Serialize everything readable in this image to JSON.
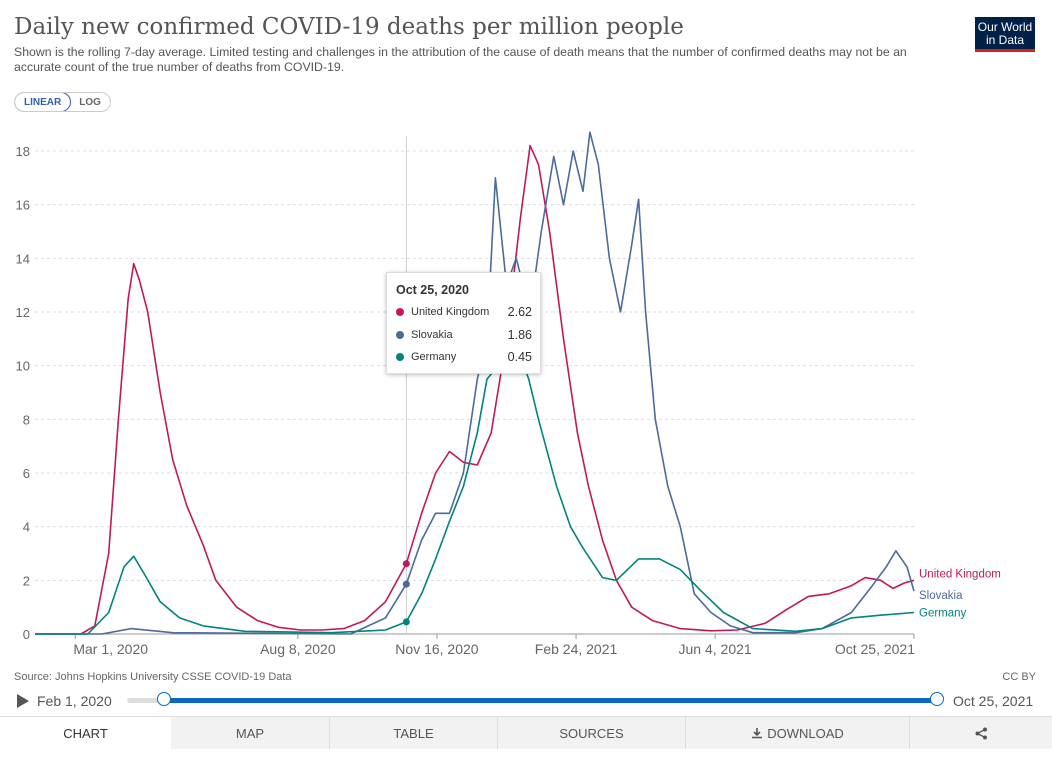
{
  "header": {
    "title": "Daily new confirmed COVID-19 deaths per million people",
    "subtitle": "Shown is the rolling 7-day average. Limited testing and challenges in the attribution of the cause of death means that the number of confirmed deaths may not be an accurate count of the true number of deaths from COVID-19.",
    "logo_line1": "Our World",
    "logo_line2": "in Data"
  },
  "scale_toggle": {
    "linear_label": "LINEAR",
    "log_label": "LOG",
    "selected": "LINEAR"
  },
  "footer": {
    "source": "Source: Johns Hopkins University CSSE COVID-19 Data",
    "license": "CC BY"
  },
  "timeline": {
    "start_label": "Feb 1, 2020",
    "end_label": "Oct 25, 2021"
  },
  "tabs": [
    {
      "label": "CHART",
      "active": true
    },
    {
      "label": "MAP"
    },
    {
      "label": "TABLE"
    },
    {
      "label": "SOURCES"
    },
    {
      "label": "DOWNLOAD",
      "icon": "download-icon"
    },
    {
      "label": "",
      "icon": "share-icon"
    }
  ],
  "tooltip": {
    "date": "Oct 25, 2020",
    "rows": [
      {
        "name": "United Kingdom",
        "value": "2.62",
        "color": "#c2185b"
      },
      {
        "name": "Slovakia",
        "value": "1.86",
        "color": "#4c6a9c"
      },
      {
        "name": "Germany",
        "value": "0.45",
        "color": "#00847e"
      }
    ]
  },
  "chart_data": {
    "type": "line",
    "title": "Daily new confirmed COVID-19 deaths per million people",
    "x_type": "date",
    "xlim": [
      "2020-02-01",
      "2021-10-25"
    ],
    "ylim": [
      0,
      18
    ],
    "x_ticks": [
      {
        "date": "2020-03-01",
        "label": "Mar 1, 2020"
      },
      {
        "date": "2020-08-08",
        "label": "Aug 8, 2020"
      },
      {
        "date": "2020-11-16",
        "label": "Nov 16, 2020"
      },
      {
        "date": "2021-02-24",
        "label": "Feb 24, 2021"
      },
      {
        "date": "2021-06-04",
        "label": "Jun 4, 2021"
      },
      {
        "date": "2021-10-25",
        "label": "Oct 25, 2021"
      }
    ],
    "y_ticks": [
      0,
      2,
      4,
      6,
      8,
      10,
      12,
      14,
      16,
      18
    ],
    "grid": "horizontal",
    "hover_date": "2020-10-25",
    "series": [
      {
        "name": "United Kingdom",
        "color": "#c2185b",
        "points": [
          [
            "2020-02-01",
            0
          ],
          [
            "2020-03-05",
            0
          ],
          [
            "2020-03-15",
            0.3
          ],
          [
            "2020-03-25",
            3
          ],
          [
            "2020-04-01",
            8
          ],
          [
            "2020-04-08",
            12.5
          ],
          [
            "2020-04-12",
            13.8
          ],
          [
            "2020-04-16",
            13.2
          ],
          [
            "2020-04-22",
            12
          ],
          [
            "2020-05-01",
            9
          ],
          [
            "2020-05-10",
            6.5
          ],
          [
            "2020-05-20",
            4.8
          ],
          [
            "2020-06-01",
            3.3
          ],
          [
            "2020-06-10",
            2
          ],
          [
            "2020-06-25",
            1
          ],
          [
            "2020-07-10",
            0.5
          ],
          [
            "2020-07-25",
            0.25
          ],
          [
            "2020-08-10",
            0.15
          ],
          [
            "2020-08-25",
            0.15
          ],
          [
            "2020-09-10",
            0.2
          ],
          [
            "2020-09-25",
            0.5
          ],
          [
            "2020-10-10",
            1.2
          ],
          [
            "2020-10-25",
            2.62
          ],
          [
            "2020-11-05",
            4.5
          ],
          [
            "2020-11-15",
            6
          ],
          [
            "2020-11-25",
            6.8
          ],
          [
            "2020-12-05",
            6.4
          ],
          [
            "2020-12-15",
            6.3
          ],
          [
            "2020-12-25",
            7.5
          ],
          [
            "2021-01-05",
            11
          ],
          [
            "2021-01-15",
            15.5
          ],
          [
            "2021-01-22",
            18.2
          ],
          [
            "2021-01-28",
            17.5
          ],
          [
            "2021-02-05",
            15
          ],
          [
            "2021-02-15",
            11
          ],
          [
            "2021-02-25",
            7.5
          ],
          [
            "2021-03-05",
            5.5
          ],
          [
            "2021-03-15",
            3.5
          ],
          [
            "2021-03-25",
            2
          ],
          [
            "2021-04-05",
            1
          ],
          [
            "2021-04-20",
            0.5
          ],
          [
            "2021-05-10",
            0.2
          ],
          [
            "2021-06-01",
            0.12
          ],
          [
            "2021-06-20",
            0.15
          ],
          [
            "2021-07-10",
            0.4
          ],
          [
            "2021-07-25",
            0.9
          ],
          [
            "2021-08-10",
            1.4
          ],
          [
            "2021-08-25",
            1.5
          ],
          [
            "2021-09-10",
            1.8
          ],
          [
            "2021-09-20",
            2.1
          ],
          [
            "2021-10-01",
            2
          ],
          [
            "2021-10-10",
            1.7
          ],
          [
            "2021-10-18",
            1.9
          ],
          [
            "2021-10-25",
            2
          ]
        ]
      },
      {
        "name": "Slovakia",
        "color": "#4c6a9c",
        "points": [
          [
            "2020-02-01",
            0
          ],
          [
            "2020-03-20",
            0
          ],
          [
            "2020-04-10",
            0.2
          ],
          [
            "2020-05-10",
            0.05
          ],
          [
            "2020-09-15",
            0
          ],
          [
            "2020-10-10",
            0.6
          ],
          [
            "2020-10-25",
            1.86
          ],
          [
            "2020-11-05",
            3.5
          ],
          [
            "2020-11-15",
            4.5
          ],
          [
            "2020-11-25",
            4.5
          ],
          [
            "2020-12-05",
            6
          ],
          [
            "2020-12-15",
            9.5
          ],
          [
            "2020-12-22",
            11
          ],
          [
            "2020-12-28",
            17
          ],
          [
            "2021-01-05",
            13
          ],
          [
            "2021-01-12",
            14
          ],
          [
            "2021-01-22",
            12
          ],
          [
            "2021-01-30",
            15
          ],
          [
            "2021-02-08",
            17.8
          ],
          [
            "2021-02-15",
            16
          ],
          [
            "2021-02-22",
            18
          ],
          [
            "2021-03-01",
            16.5
          ],
          [
            "2021-03-06",
            18.7
          ],
          [
            "2021-03-12",
            17.5
          ],
          [
            "2021-03-20",
            14
          ],
          [
            "2021-03-28",
            12
          ],
          [
            "2021-04-05",
            14.5
          ],
          [
            "2021-04-10",
            16.2
          ],
          [
            "2021-04-15",
            12
          ],
          [
            "2021-04-22",
            8
          ],
          [
            "2021-05-01",
            5.5
          ],
          [
            "2021-05-10",
            4
          ],
          [
            "2021-05-20",
            1.5
          ],
          [
            "2021-06-01",
            0.8
          ],
          [
            "2021-06-15",
            0.3
          ],
          [
            "2021-07-01",
            0.05
          ],
          [
            "2021-08-01",
            0.05
          ],
          [
            "2021-08-20",
            0.2
          ],
          [
            "2021-09-10",
            0.8
          ],
          [
            "2021-09-25",
            1.8
          ],
          [
            "2021-10-05",
            2.5
          ],
          [
            "2021-10-12",
            3.1
          ],
          [
            "2021-10-20",
            2.5
          ],
          [
            "2021-10-25",
            1.6
          ]
        ]
      },
      {
        "name": "Germany",
        "color": "#00847e",
        "points": [
          [
            "2020-02-01",
            0
          ],
          [
            "2020-03-10",
            0
          ],
          [
            "2020-03-25",
            0.8
          ],
          [
            "2020-04-05",
            2.5
          ],
          [
            "2020-04-12",
            2.9
          ],
          [
            "2020-04-20",
            2.2
          ],
          [
            "2020-05-01",
            1.2
          ],
          [
            "2020-05-15",
            0.6
          ],
          [
            "2020-06-01",
            0.3
          ],
          [
            "2020-07-01",
            0.1
          ],
          [
            "2020-09-01",
            0.05
          ],
          [
            "2020-10-10",
            0.15
          ],
          [
            "2020-10-25",
            0.45
          ],
          [
            "2020-11-05",
            1.5
          ],
          [
            "2020-11-15",
            2.8
          ],
          [
            "2020-11-25",
            4.2
          ],
          [
            "2020-12-05",
            5.5
          ],
          [
            "2020-12-15",
            7.5
          ],
          [
            "2020-12-22",
            9.5
          ],
          [
            "2020-12-30",
            10
          ],
          [
            "2021-01-07",
            11
          ],
          [
            "2021-01-14",
            10.5
          ],
          [
            "2021-01-21",
            9.5
          ],
          [
            "2021-01-28",
            8
          ],
          [
            "2021-02-10",
            5.5
          ],
          [
            "2021-02-20",
            4
          ],
          [
            "2021-03-01",
            3.2
          ],
          [
            "2021-03-15",
            2.1
          ],
          [
            "2021-03-25",
            2
          ],
          [
            "2021-04-10",
            2.8
          ],
          [
            "2021-04-25",
            2.8
          ],
          [
            "2021-05-10",
            2.4
          ],
          [
            "2021-05-25",
            1.6
          ],
          [
            "2021-06-10",
            0.8
          ],
          [
            "2021-07-01",
            0.2
          ],
          [
            "2021-08-01",
            0.1
          ],
          [
            "2021-08-20",
            0.2
          ],
          [
            "2021-09-10",
            0.6
          ],
          [
            "2021-10-01",
            0.7
          ],
          [
            "2021-10-25",
            0.8
          ]
        ]
      }
    ]
  }
}
